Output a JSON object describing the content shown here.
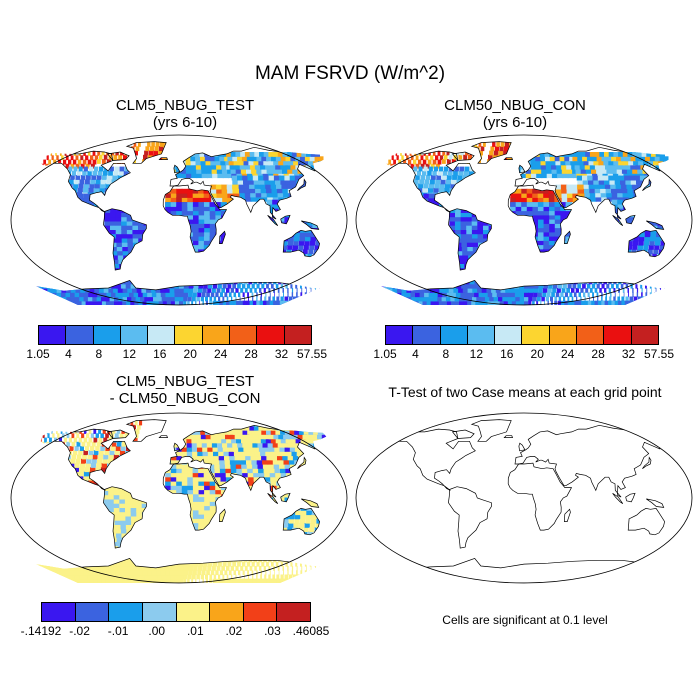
{
  "title": "MAM FSRVD (W/m^2)",
  "panels": [
    {
      "line1": "CLM5_NBUG_TEST",
      "line2": "(yrs 6-10)"
    },
    {
      "line1": "CLM50_NBUG_CON",
      "line2": "(yrs 6-10)"
    },
    {
      "line1": "CLM5_NBUG_TEST",
      "line2": "- CLM50_NBUG_CON"
    },
    {
      "line1": "T-Test of two Case means at each grid point",
      "line2": ""
    }
  ],
  "legend_abs": {
    "colors": [
      "#3a17f0",
      "#3b63e0",
      "#1a9eeb",
      "#5bbcf0",
      "#c7e9f5",
      "#fcd530",
      "#f9a51a",
      "#f26018",
      "#ea1010",
      "#c42020"
    ],
    "labels": [
      "1.05",
      "4",
      "8",
      "12",
      "16",
      "20",
      "24",
      "28",
      "32",
      "57.55"
    ]
  },
  "legend_diff": {
    "colors": [
      "#3a17f0",
      "#3b63e0",
      "#1a9eeb",
      "#8ccbee",
      "#fbf289",
      "#f9a51a",
      "#f24018",
      "#c42020"
    ],
    "labels": [
      "-.14192",
      "-.02",
      "-.01",
      ".00",
      ".01",
      ".02",
      ".03",
      ".46085"
    ]
  },
  "significance_note": "Cells are significant at 0.1 level"
}
